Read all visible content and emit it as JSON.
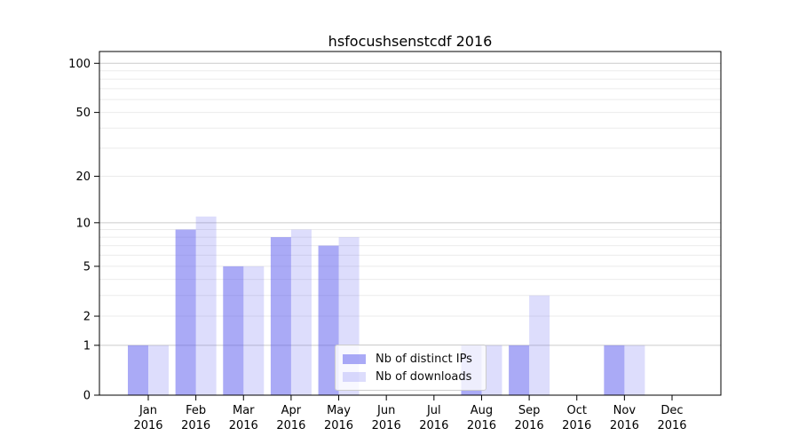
{
  "chart_data": {
    "type": "bar",
    "title": "hsfocushsenstcdf 2016",
    "categories": [
      "Jan",
      "Feb",
      "Mar",
      "Apr",
      "May",
      "Jun",
      "Jul",
      "Aug",
      "Sep",
      "Oct",
      "Nov",
      "Dec"
    ],
    "category_year": "2016",
    "series": [
      {
        "name": "Nb of distinct IPs",
        "color": "#5555ee",
        "fill_opacity": 0.5,
        "rendered_color": "#abaafa",
        "values": [
          1,
          9,
          5,
          8,
          7,
          0,
          0,
          1,
          1,
          0,
          1,
          0
        ]
      },
      {
        "name": "Nb of downloads",
        "color": "#5555ee",
        "fill_opacity": 0.2,
        "rendered_color": "#dbdbfa",
        "values": [
          1,
          11,
          5,
          9,
          8,
          0,
          0,
          1,
          3,
          0,
          1,
          0
        ]
      }
    ],
    "xlabel": "",
    "ylabel": "",
    "y_axis": {
      "scale": "log1p",
      "tick_labels": [
        0,
        1,
        2,
        5,
        10,
        20,
        50,
        100
      ],
      "major_gridlines": [
        1,
        10,
        100
      ],
      "minor_gridlines": [
        2,
        3,
        4,
        5,
        6,
        7,
        8,
        9,
        20,
        30,
        40,
        50,
        60,
        70,
        80,
        90
      ],
      "ylim": [
        0,
        118
      ]
    },
    "grid": true,
    "legend_position": "lower center"
  },
  "colors": {
    "background": "#ffffff",
    "bar_base": "#5555ee",
    "major_grid": "#cccccc",
    "minor_grid": "#ebebeb",
    "spine": "#000000",
    "tick_text": "#000000",
    "legend_border": "#cccccc"
  }
}
